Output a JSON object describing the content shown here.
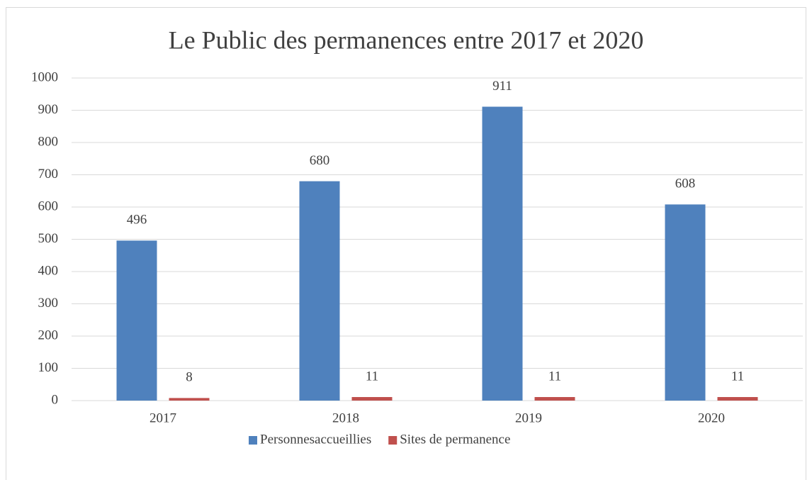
{
  "chart_data": {
    "type": "bar",
    "title": "Le Public des permanences entre 2017 et 2020",
    "categories": [
      "2017",
      "2018",
      "2019",
      "2020"
    ],
    "series": [
      {
        "name": "Personnesaccueillies",
        "color": "#4f81bd",
        "values": [
          496,
          680,
          911,
          608
        ]
      },
      {
        "name": "Sites de permanence",
        "color": "#c0504d",
        "values": [
          8,
          11,
          11,
          11
        ]
      }
    ],
    "ylim": [
      0,
      1000
    ],
    "yticks": [
      0,
      100,
      200,
      300,
      400,
      500,
      600,
      700,
      800,
      900,
      1000
    ],
    "grid": true,
    "legend": "bottom",
    "data_labels": true
  }
}
